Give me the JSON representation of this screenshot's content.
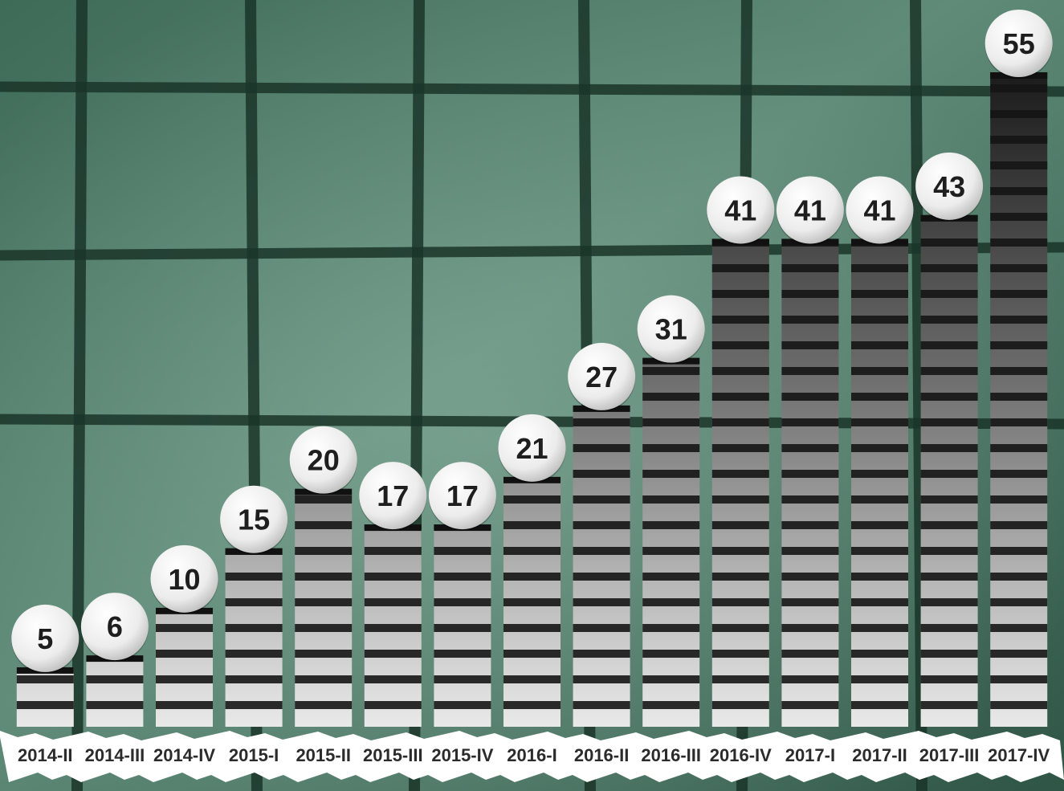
{
  "chart_data": {
    "type": "bar",
    "categories": [
      "2014-II",
      "2014-III",
      "2014-IV",
      "2015-I",
      "2015-II",
      "2015-III",
      "2015-IV",
      "2016-I",
      "2016-II",
      "2016-III",
      "2016-IV",
      "2017-I",
      "2017-II",
      "2017-III",
      "2017-IV"
    ],
    "values": [
      5,
      6,
      10,
      15,
      20,
      17,
      17,
      21,
      27,
      31,
      41,
      41,
      41,
      43,
      55
    ],
    "data_labels": [
      "5",
      "6",
      "10",
      "15",
      "20",
      "17",
      "17",
      "21",
      "27",
      "31",
      "41",
      "41",
      "41",
      "43",
      "55"
    ],
    "title": "",
    "xlabel": "",
    "ylabel": "",
    "ylim": [
      0,
      55
    ],
    "grid": false,
    "legend": "none"
  },
  "colors": {
    "background_green": "#4f7a68",
    "background_dark": "#1f3d31",
    "net_strands": "#193226",
    "bar_dark": "#1c1c1c",
    "bar_light": "#e6e6e6",
    "label_ball": "#f2f2f2",
    "strip": "#ffffff"
  }
}
